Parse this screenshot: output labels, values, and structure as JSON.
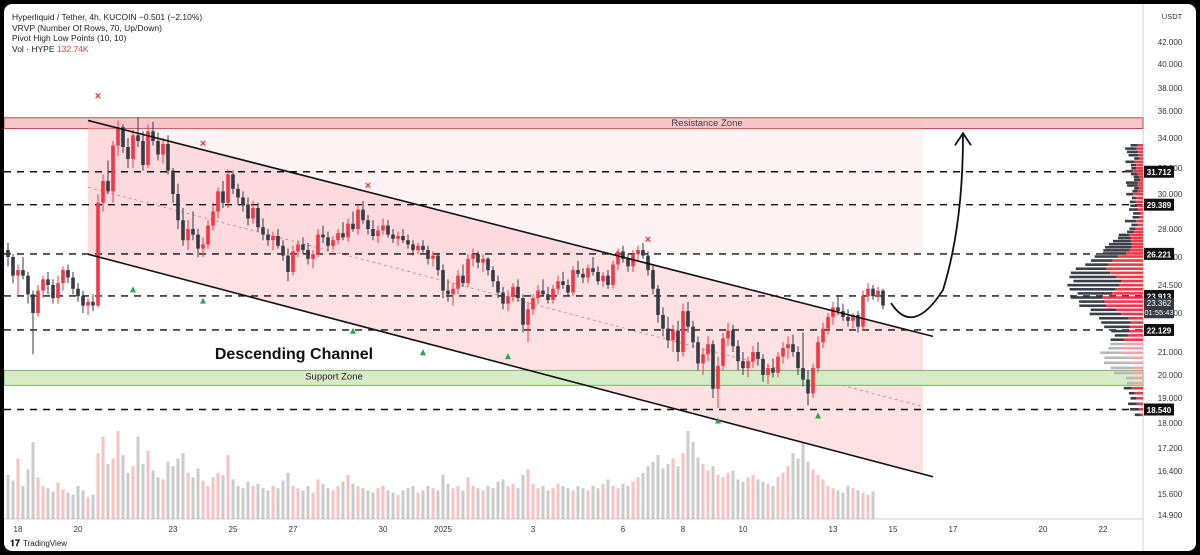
{
  "legend": {
    "line1": "Hyperliquid / Tether, 4h, KUCOIN  −0.501 (−2.10%)",
    "line2": "VRVP (Number Of Rows, 70, Up/Down)",
    "line3": "Pivot High Low Points (10, 10)",
    "line4_label": "Vol · HYPE",
    "line4_value": "132.74K"
  },
  "brand": "TradingView",
  "chart_data": {
    "type": "candlestick",
    "currency_label": "USDT",
    "y_ticks": [
      42.0,
      40.0,
      38.0,
      36.0,
      34.0,
      32.0,
      30.0,
      28.0,
      26.0,
      24.5,
      23.0,
      21.0,
      20.0,
      19.0,
      18.0,
      17.2,
      16.4,
      15.6,
      14.9
    ],
    "y_tick_labels": [
      "42.000",
      "40.000",
      "38.000",
      "36.000",
      "34.000",
      "32.000",
      "30.000",
      "28.000",
      "26.000",
      "24.500",
      "23.000",
      "21.000",
      "20.000",
      "19.000",
      "18.000",
      "17.200",
      "16.400",
      "15.600",
      "14.900"
    ],
    "x_ticks": [
      {
        "label": "18",
        "i": -20
      },
      {
        "label": "20",
        "i": -8
      },
      {
        "label": "23",
        "i": 11
      },
      {
        "label": "25",
        "i": 23
      },
      {
        "label": "27",
        "i": 35
      },
      {
        "label": "30",
        "i": 53
      },
      {
        "label": "2025",
        "i": 65
      },
      {
        "label": "3",
        "i": 83
      },
      {
        "label": "6",
        "i": 101
      },
      {
        "label": "8",
        "i": 113
      },
      {
        "label": "10",
        "i": 125
      },
      {
        "label": "13",
        "i": 143
      },
      {
        "label": "15",
        "i": 155
      },
      {
        "label": "17",
        "i": 167
      },
      {
        "label": "20",
        "i": 185
      },
      {
        "label": "22",
        "i": 197
      }
    ],
    "levels": [
      {
        "value": 31.712,
        "label": "31.712"
      },
      {
        "value": 29.389,
        "label": "29.389"
      },
      {
        "value": 26.221,
        "label": "26.221"
      },
      {
        "value": 23.913,
        "label": "23.913"
      },
      {
        "value": 22.129,
        "label": "22.129"
      },
      {
        "value": 18.54,
        "label": "18.540"
      }
    ],
    "last_price": {
      "value": 23.362,
      "label": "23.362",
      "countdown": "01:55:43"
    },
    "resistance_zone": {
      "low": 34.7,
      "high": 35.5,
      "label": "Resistance Zone"
    },
    "support_zone": {
      "low": 19.55,
      "high": 20.2,
      "label": "Support Zone"
    },
    "channel": {
      "label": "Descending Channel",
      "upper": [
        {
          "i": -6,
          "price": 35.3
        },
        {
          "i": 163,
          "price": 21.8
        }
      ],
      "lower": [
        {
          "i": -6,
          "price": 26.2
        },
        {
          "i": 163,
          "price": 16.2
        }
      ],
      "box_end_i": 163
    },
    "pivot_highs": [
      {
        "i": -4,
        "price": 37.0
      },
      {
        "i": 17,
        "price": 33.4
      },
      {
        "i": 50,
        "price": 30.4
      },
      {
        "i": 106,
        "price": 27.0
      }
    ],
    "pivot_lows": [
      {
        "i": -24,
        "price": 20.6
      },
      {
        "i": 3,
        "price": 24.8
      },
      {
        "i": 17,
        "price": 24.2
      },
      {
        "i": 47,
        "price": 22.6
      },
      {
        "i": 61,
        "price": 21.5
      },
      {
        "i": 78,
        "price": 21.3
      },
      {
        "i": 120,
        "price": 18.5
      },
      {
        "i": 140,
        "price": 18.7
      }
    ],
    "projection_arrow": {
      "from": {
        "i": 157,
        "price": 22.9
      },
      "to": {
        "i": 169,
        "price": 34.2
      }
    },
    "candles": [
      [
        26.5,
        27.0,
        25.5,
        26.0
      ],
      [
        26.0,
        26.2,
        24.6,
        25.0
      ],
      [
        25.0,
        25.6,
        24.0,
        25.3
      ],
      [
        25.3,
        26.0,
        24.8,
        25.0
      ],
      [
        25.0,
        25.2,
        23.5,
        24.0
      ],
      [
        24.0,
        24.2,
        20.9,
        23.0
      ],
      [
        23.0,
        24.5,
        22.8,
        24.2
      ],
      [
        24.2,
        25.0,
        23.8,
        24.8
      ],
      [
        24.8,
        25.2,
        24.0,
        24.5
      ],
      [
        24.5,
        24.8,
        23.5,
        23.8
      ],
      [
        23.8,
        25.0,
        23.5,
        24.6
      ],
      [
        24.6,
        25.5,
        24.2,
        25.3
      ],
      [
        25.3,
        25.6,
        24.6,
        24.9
      ],
      [
        24.9,
        25.2,
        24.0,
        24.3
      ],
      [
        24.3,
        24.6,
        23.6,
        23.9
      ],
      [
        23.9,
        24.2,
        23.0,
        23.4
      ],
      [
        23.4,
        23.8,
        22.9,
        23.6
      ],
      [
        23.6,
        24.0,
        23.1,
        23.4
      ],
      [
        23.4,
        30.0,
        23.3,
        29.5
      ],
      [
        29.5,
        31.5,
        29.0,
        31.0
      ],
      [
        31.0,
        32.5,
        30.0,
        30.2
      ],
      [
        30.2,
        33.8,
        29.5,
        33.5
      ],
      [
        33.5,
        35.3,
        32.8,
        34.8
      ],
      [
        34.8,
        35.0,
        33.0,
        33.4
      ],
      [
        33.4,
        34.0,
        32.0,
        32.6
      ],
      [
        32.6,
        34.6,
        32.0,
        34.2
      ],
      [
        34.2,
        35.5,
        33.4,
        33.8
      ],
      [
        33.8,
        34.5,
        31.8,
        32.2
      ],
      [
        32.2,
        35.0,
        32.0,
        34.5
      ],
      [
        34.5,
        35.2,
        33.5,
        33.8
      ],
      [
        33.8,
        34.4,
        32.5,
        32.9
      ],
      [
        32.9,
        34.0,
        32.3,
        33.6
      ],
      [
        33.6,
        34.2,
        31.5,
        31.8
      ],
      [
        31.8,
        32.0,
        29.5,
        30.0
      ],
      [
        30.0,
        30.8,
        28.0,
        28.5
      ],
      [
        28.5,
        29.2,
        26.8,
        27.2
      ],
      [
        27.2,
        28.5,
        26.5,
        28.0
      ],
      [
        28.0,
        29.0,
        27.2,
        27.6
      ],
      [
        27.6,
        28.0,
        26.0,
        26.6
      ],
      [
        26.6,
        27.4,
        26.0,
        26.9
      ],
      [
        26.9,
        28.5,
        26.6,
        28.2
      ],
      [
        28.2,
        29.5,
        27.9,
        29.0
      ],
      [
        29.0,
        30.5,
        28.6,
        30.2
      ],
      [
        30.2,
        31.0,
        29.2,
        29.5
      ],
      [
        29.5,
        31.9,
        29.2,
        31.5
      ],
      [
        31.5,
        31.8,
        30.0,
        30.4
      ],
      [
        30.4,
        30.8,
        29.4,
        29.8
      ],
      [
        29.8,
        30.2,
        29.0,
        29.4
      ],
      [
        29.4,
        29.8,
        28.2,
        28.6
      ],
      [
        28.6,
        29.6,
        28.3,
        29.2
      ],
      [
        29.2,
        29.5,
        27.8,
        28.1
      ],
      [
        28.1,
        28.6,
        27.2,
        27.6
      ],
      [
        27.6,
        28.0,
        26.8,
        27.2
      ],
      [
        27.2,
        27.8,
        26.5,
        27.5
      ],
      [
        27.5,
        28.0,
        26.6,
        26.8
      ],
      [
        26.8,
        27.2,
        25.8,
        26.1
      ],
      [
        26.1,
        26.6,
        24.7,
        25.2
      ],
      [
        25.2,
        26.8,
        25.0,
        26.4
      ],
      [
        26.4,
        27.2,
        26.0,
        26.9
      ],
      [
        26.9,
        27.4,
        26.2,
        26.5
      ],
      [
        26.5,
        27.0,
        25.6,
        25.9
      ],
      [
        25.9,
        26.5,
        25.4,
        26.2
      ],
      [
        26.2,
        28.0,
        26.0,
        27.6
      ],
      [
        27.6,
        28.2,
        27.0,
        27.4
      ],
      [
        27.4,
        27.8,
        26.4,
        26.8
      ],
      [
        26.8,
        27.5,
        26.5,
        27.2
      ],
      [
        27.2,
        28.0,
        26.9,
        27.7
      ],
      [
        27.7,
        28.4,
        27.2,
        27.4
      ],
      [
        27.4,
        28.6,
        27.1,
        28.3
      ],
      [
        28.3,
        29.0,
        27.8,
        28.0
      ],
      [
        28.0,
        29.4,
        27.6,
        29.1
      ],
      [
        29.1,
        29.6,
        28.3,
        28.5
      ],
      [
        28.5,
        28.8,
        27.6,
        28.0
      ],
      [
        28.0,
        28.5,
        27.2,
        27.5
      ],
      [
        27.5,
        28.2,
        27.0,
        27.9
      ],
      [
        27.9,
        28.6,
        27.6,
        28.2
      ],
      [
        28.2,
        28.5,
        27.4,
        27.6
      ],
      [
        27.6,
        28.0,
        27.0,
        27.3
      ],
      [
        27.3,
        27.8,
        26.8,
        27.5
      ],
      [
        27.5,
        28.0,
        27.0,
        27.2
      ],
      [
        27.2,
        27.6,
        26.6,
        26.9
      ],
      [
        26.9,
        27.2,
        26.1,
        26.5
      ],
      [
        26.5,
        27.0,
        26.2,
        26.8
      ],
      [
        26.8,
        27.2,
        26.3,
        26.5
      ],
      [
        26.5,
        26.8,
        25.6,
        25.9
      ],
      [
        25.9,
        26.4,
        25.5,
        26.1
      ],
      [
        26.1,
        26.3,
        25.0,
        25.3
      ],
      [
        25.3,
        25.6,
        23.8,
        24.2
      ],
      [
        24.2,
        24.8,
        23.6,
        24.0
      ],
      [
        24.0,
        24.6,
        23.4,
        24.3
      ],
      [
        24.3,
        25.3,
        24.0,
        25.0
      ],
      [
        25.0,
        25.6,
        24.4,
        24.6
      ],
      [
        24.6,
        26.2,
        24.4,
        25.9
      ],
      [
        25.9,
        26.6,
        25.5,
        26.2
      ],
      [
        26.2,
        26.4,
        25.4,
        25.7
      ],
      [
        25.7,
        26.2,
        25.2,
        25.9
      ],
      [
        25.9,
        26.0,
        25.0,
        25.3
      ],
      [
        25.3,
        25.5,
        24.4,
        24.7
      ],
      [
        24.7,
        25.0,
        23.8,
        24.1
      ],
      [
        24.1,
        24.4,
        23.2,
        23.5
      ],
      [
        23.5,
        24.2,
        23.1,
        23.9
      ],
      [
        23.9,
        24.6,
        23.6,
        24.4
      ],
      [
        24.4,
        24.8,
        23.6,
        23.8
      ],
      [
        23.8,
        24.0,
        22.0,
        22.4
      ],
      [
        22.4,
        23.6,
        21.5,
        23.2
      ],
      [
        23.2,
        24.0,
        22.9,
        23.8
      ],
      [
        23.8,
        24.5,
        23.5,
        24.2
      ],
      [
        24.2,
        24.8,
        23.9,
        24.0
      ],
      [
        24.0,
        24.4,
        23.5,
        23.7
      ],
      [
        23.7,
        24.5,
        23.5,
        24.3
      ],
      [
        24.3,
        25.0,
        24.0,
        24.7
      ],
      [
        24.7,
        25.2,
        24.3,
        24.5
      ],
      [
        24.5,
        24.8,
        23.9,
        24.1
      ],
      [
        24.1,
        25.5,
        23.9,
        25.3
      ],
      [
        25.3,
        25.8,
        24.9,
        25.1
      ],
      [
        25.1,
        25.4,
        24.6,
        24.9
      ],
      [
        24.9,
        25.6,
        24.6,
        25.4
      ],
      [
        25.4,
        26.0,
        25.0,
        25.2
      ],
      [
        25.2,
        25.5,
        24.5,
        24.7
      ],
      [
        24.7,
        25.2,
        24.4,
        25.0
      ],
      [
        25.0,
        25.3,
        24.3,
        24.5
      ],
      [
        24.5,
        25.8,
        24.3,
        25.6
      ],
      [
        25.6,
        26.6,
        25.3,
        26.4
      ],
      [
        26.4,
        26.8,
        25.7,
        25.9
      ],
      [
        25.9,
        26.2,
        25.2,
        25.5
      ],
      [
        25.5,
        26.5,
        25.2,
        26.2
      ],
      [
        26.2,
        26.8,
        25.8,
        26.5
      ],
      [
        26.5,
        27.0,
        25.9,
        26.1
      ],
      [
        26.1,
        26.4,
        25.0,
        25.3
      ],
      [
        25.3,
        25.6,
        24.0,
        24.3
      ],
      [
        24.3,
        24.5,
        22.5,
        22.9
      ],
      [
        22.9,
        23.3,
        21.8,
        22.2
      ],
      [
        22.2,
        22.8,
        21.2,
        21.6
      ],
      [
        21.6,
        22.4,
        21.0,
        22.1
      ],
      [
        22.1,
        22.6,
        20.6,
        21.0
      ],
      [
        21.0,
        23.5,
        20.8,
        23.1
      ],
      [
        23.1,
        23.6,
        22.0,
        22.3
      ],
      [
        22.3,
        22.6,
        21.2,
        21.5
      ],
      [
        21.5,
        21.8,
        20.2,
        20.5
      ],
      [
        20.5,
        21.2,
        20.0,
        20.9
      ],
      [
        20.9,
        21.8,
        20.6,
        21.4
      ],
      [
        21.4,
        21.6,
        19.0,
        19.4
      ],
      [
        19.4,
        20.8,
        18.6,
        20.4
      ],
      [
        20.4,
        22.0,
        20.2,
        21.7
      ],
      [
        21.7,
        22.5,
        21.3,
        22.1
      ],
      [
        22.1,
        22.4,
        21.0,
        21.3
      ],
      [
        21.3,
        21.6,
        20.2,
        20.6
      ],
      [
        20.6,
        21.0,
        20.0,
        20.3
      ],
      [
        20.3,
        20.8,
        19.9,
        20.6
      ],
      [
        20.6,
        21.3,
        20.3,
        21.0
      ],
      [
        21.0,
        21.5,
        20.4,
        20.7
      ],
      [
        20.7,
        20.9,
        19.7,
        20.0
      ],
      [
        20.0,
        20.5,
        19.6,
        20.3
      ],
      [
        20.3,
        20.7,
        19.9,
        20.1
      ],
      [
        20.1,
        21.0,
        19.9,
        20.8
      ],
      [
        20.8,
        21.5,
        20.5,
        21.2
      ],
      [
        21.2,
        21.8,
        20.7,
        21.4
      ],
      [
        21.4,
        21.9,
        20.8,
        21.0
      ],
      [
        21.0,
        21.3,
        20.0,
        20.3
      ],
      [
        20.3,
        22.0,
        19.5,
        19.8
      ],
      [
        19.8,
        20.2,
        18.7,
        19.2
      ],
      [
        19.2,
        20.5,
        19.0,
        20.3
      ],
      [
        20.3,
        21.8,
        20.1,
        21.5
      ],
      [
        21.5,
        22.5,
        21.2,
        22.2
      ],
      [
        22.2,
        23.0,
        21.9,
        22.8
      ],
      [
        22.8,
        23.6,
        22.4,
        23.3
      ],
      [
        23.3,
        23.9,
        22.9,
        23.1
      ],
      [
        23.1,
        23.5,
        22.6,
        22.8
      ],
      [
        22.8,
        23.2,
        22.3,
        22.6
      ],
      [
        22.6,
        23.0,
        22.2,
        22.9
      ],
      [
        22.9,
        23.1,
        22.0,
        22.3
      ],
      [
        22.3,
        24.2,
        22.1,
        23.9
      ],
      [
        23.9,
        24.6,
        23.6,
        24.3
      ],
      [
        24.3,
        24.5,
        23.7,
        23.9
      ],
      [
        23.9,
        24.4,
        23.6,
        24.2
      ],
      [
        24.2,
        24.3,
        23.2,
        23.4
      ]
    ],
    "volumes": [
      40,
      35,
      55,
      30,
      45,
      70,
      38,
      30,
      28,
      25,
      33,
      27,
      24,
      22,
      30,
      26,
      20,
      22,
      60,
      75,
      50,
      55,
      80,
      58,
      42,
      48,
      75,
      50,
      62,
      44,
      38,
      36,
      52,
      48,
      55,
      60,
      42,
      38,
      46,
      35,
      30,
      38,
      42,
      40,
      58,
      36,
      30,
      28,
      34,
      30,
      32,
      28,
      26,
      30,
      28,
      35,
      42,
      30,
      28,
      26,
      30,
      24,
      36,
      32,
      28,
      26,
      30,
      34,
      40,
      32,
      30,
      28,
      26,
      24,
      28,
      30,
      26,
      24,
      22,
      26,
      28,
      30,
      24,
      26,
      30,
      28,
      26,
      40,
      32,
      28,
      30,
      26,
      38,
      30,
      28,
      26,
      30,
      28,
      34,
      36,
      30,
      32,
      28,
      40,
      45,
      32,
      28,
      30,
      26,
      28,
      32,
      30,
      28,
      26,
      30,
      28,
      26,
      30,
      28,
      32,
      36,
      30,
      28,
      32,
      30,
      34,
      38,
      42,
      48,
      52,
      58,
      46,
      50,
      55,
      48,
      60,
      80,
      70,
      56,
      50,
      44,
      48,
      40,
      38,
      42,
      44,
      36,
      34,
      38,
      40,
      36,
      34,
      32,
      30,
      38,
      42,
      48,
      60,
      55,
      70,
      52,
      45,
      40,
      36,
      30,
      28,
      26,
      24,
      30,
      28,
      26,
      24,
      22,
      25
    ]
  }
}
